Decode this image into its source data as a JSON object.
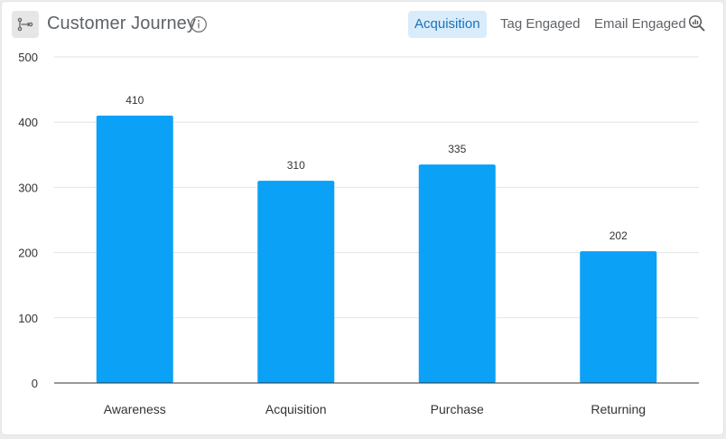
{
  "header": {
    "title": "Customer Journey",
    "icon": "flow-icon",
    "info_icon": "info-icon",
    "zoom_icon": "zoom-chart-icon"
  },
  "tabs": [
    {
      "label": "Acquisition",
      "active": true
    },
    {
      "label": "Tag Engaged",
      "active": false
    },
    {
      "label": "Email Engaged",
      "active": false
    }
  ],
  "colors": {
    "bar": "#0aa1f7",
    "accent": "#1a73b8",
    "active_tab_bg": "#d8ecfb"
  },
  "chart_data": {
    "type": "bar",
    "categories": [
      "Awareness",
      "Acquisition",
      "Purchase",
      "Returning"
    ],
    "values": [
      410,
      310,
      335,
      202
    ],
    "ylim": [
      0,
      500
    ],
    "yticks": [
      0,
      100,
      200,
      300,
      400,
      500
    ],
    "grid": true,
    "data_labels": true
  }
}
